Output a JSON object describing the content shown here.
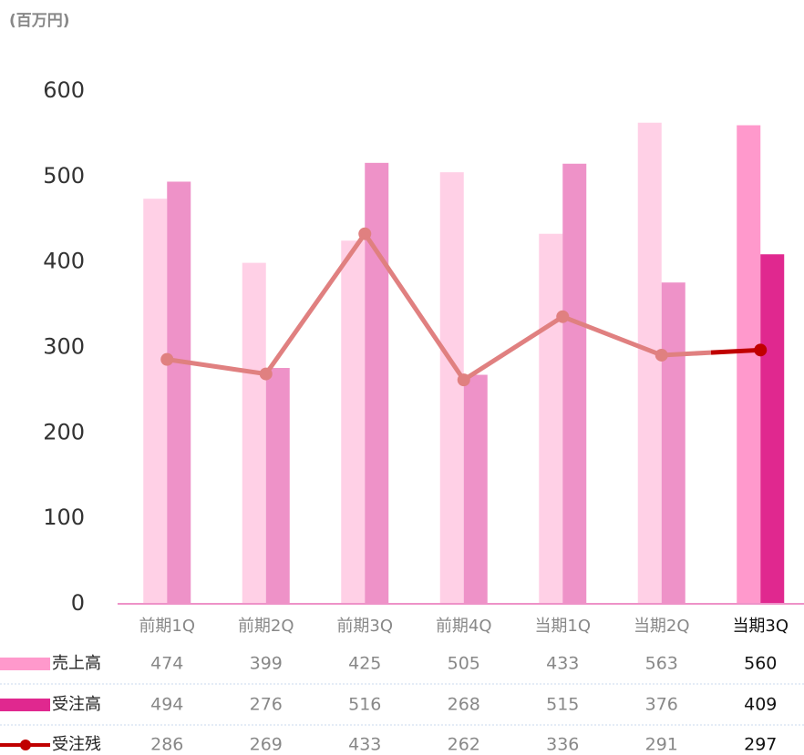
{
  "chart_data": {
    "type": "bar",
    "unit_label": "(百万円)",
    "categories": [
      "前期1Q",
      "前期2Q",
      "前期3Q",
      "前期4Q",
      "当期1Q",
      "当期2Q",
      "当期3Q"
    ],
    "series": [
      {
        "name": "売上高",
        "type": "bar",
        "color": "#ffd0e6",
        "highlight_color": "#ff99cc",
        "values": [
          474,
          399,
          425,
          505,
          433,
          563,
          560
        ]
      },
      {
        "name": "受注高",
        "type": "bar",
        "color": "#ee92c8",
        "highlight_color": "#e0288f",
        "values": [
          494,
          276,
          516,
          268,
          515,
          376,
          409
        ]
      },
      {
        "name": "受注残",
        "type": "line",
        "color": "#e08080",
        "highlight_color": "#c00000",
        "values": [
          286,
          269,
          433,
          262,
          336,
          291,
          297
        ]
      }
    ],
    "ylim": [
      0,
      600
    ],
    "yticks": [
      0,
      100,
      200,
      300,
      400,
      500,
      600
    ]
  }
}
